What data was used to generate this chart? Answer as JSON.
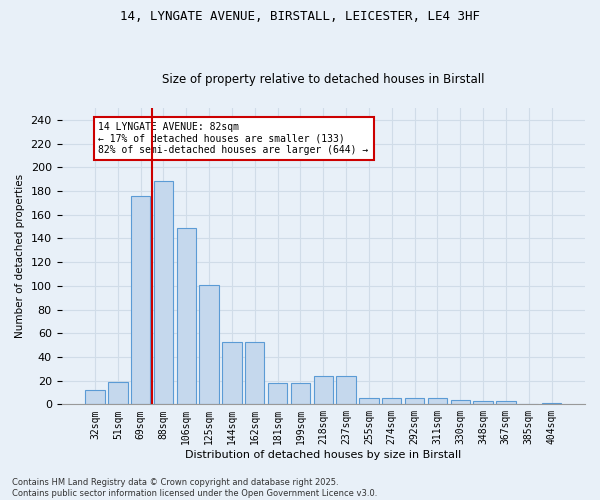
{
  "title_line1": "14, LYNGATE AVENUE, BIRSTALL, LEICESTER, LE4 3HF",
  "title_line2": "Size of property relative to detached houses in Birstall",
  "xlabel": "Distribution of detached houses by size in Birstall",
  "ylabel": "Number of detached properties",
  "categories": [
    "32sqm",
    "51sqm",
    "69sqm",
    "88sqm",
    "106sqm",
    "125sqm",
    "144sqm",
    "162sqm",
    "181sqm",
    "199sqm",
    "218sqm",
    "237sqm",
    "255sqm",
    "274sqm",
    "292sqm",
    "311sqm",
    "330sqm",
    "348sqm",
    "367sqm",
    "385sqm",
    "404sqm"
  ],
  "values": [
    12,
    19,
    176,
    188,
    149,
    101,
    53,
    53,
    18,
    18,
    24,
    24,
    5,
    5,
    5,
    5,
    4,
    3,
    3,
    0,
    1
  ],
  "bar_color": "#c5d8ed",
  "bar_edge_color": "#5b9bd5",
  "grid_color": "#d0dce8",
  "background_color": "#e8f0f8",
  "vline_x": 2.5,
  "vline_color": "#cc0000",
  "annotation_text": "14 LYNGATE AVENUE: 82sqm\n← 17% of detached houses are smaller (133)\n82% of semi-detached houses are larger (644) →",
  "annotation_box_color": "#ffffff",
  "annotation_edge_color": "#cc0000",
  "footer": "Contains HM Land Registry data © Crown copyright and database right 2025.\nContains public sector information licensed under the Open Government Licence v3.0.",
  "ylim": [
    0,
    250
  ],
  "yticks": [
    0,
    20,
    40,
    60,
    80,
    100,
    120,
    140,
    160,
    180,
    200,
    220,
    240
  ]
}
